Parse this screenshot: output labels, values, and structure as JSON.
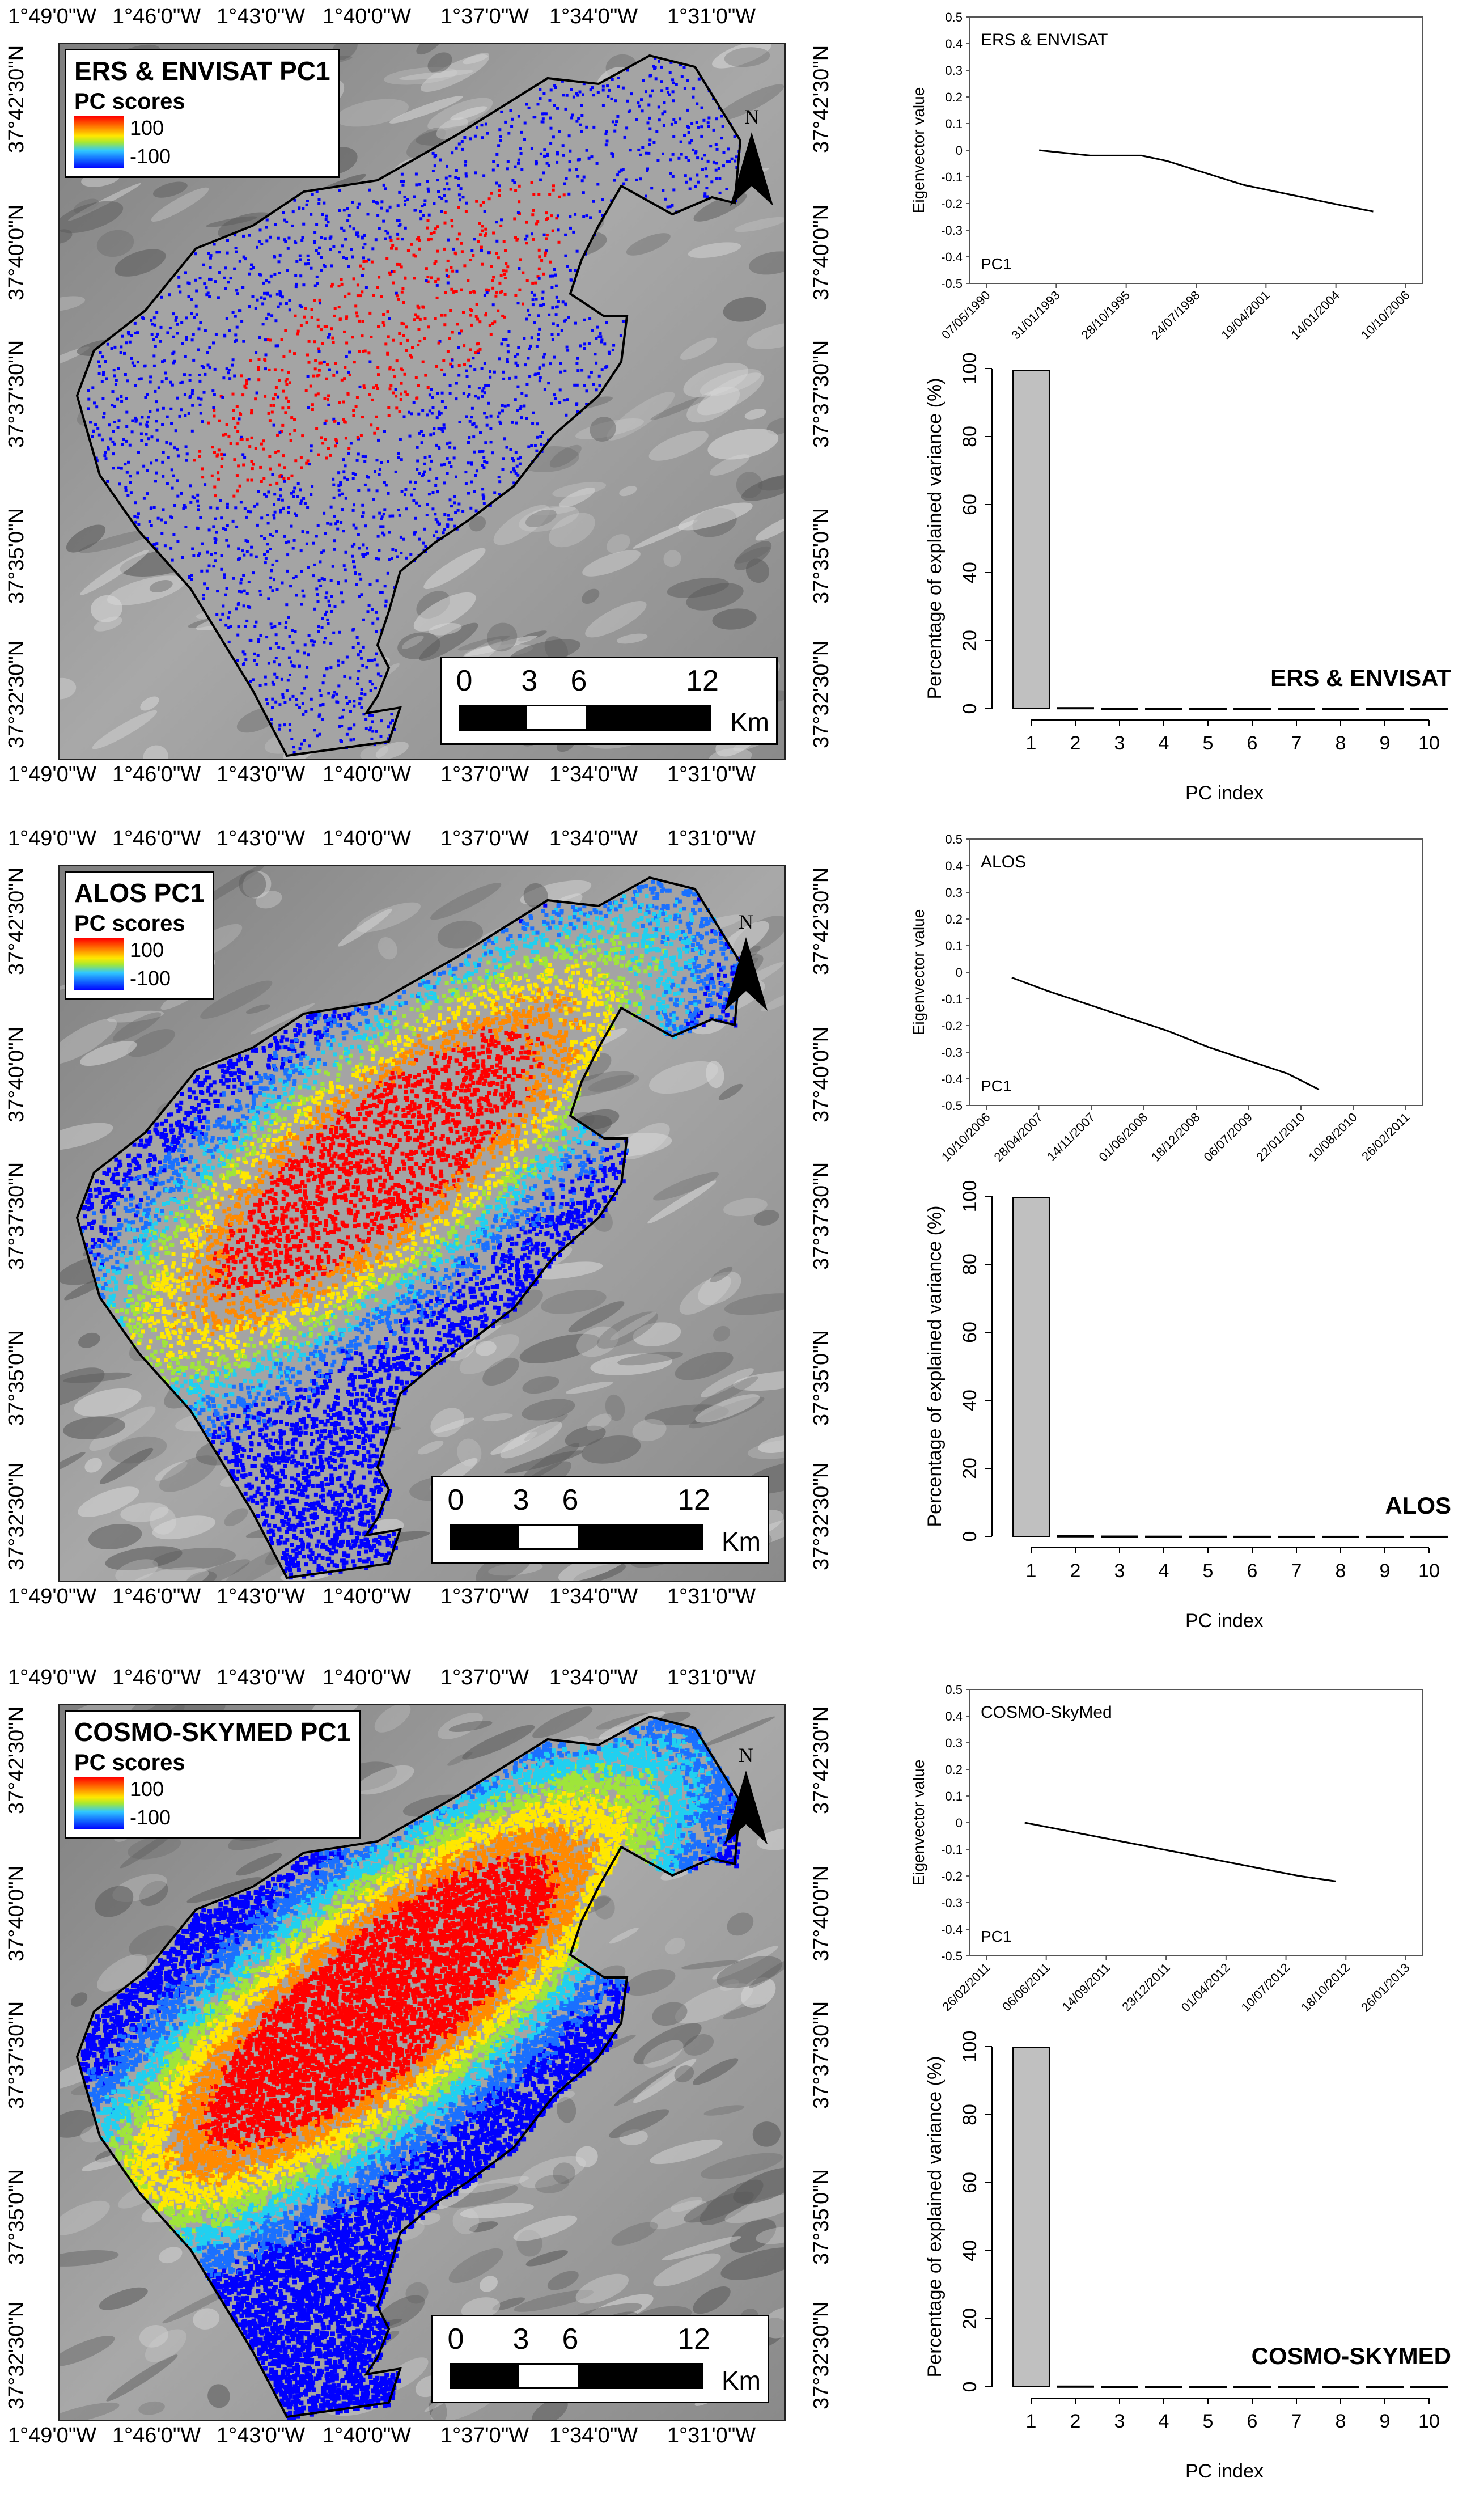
{
  "maps": [
    {
      "title": "ERS & ENVISAT PC1",
      "legend_label": "PC scores",
      "legend_max": "100",
      "legend_min": "-100",
      "intensity": "low",
      "scale_ticks": [
        "0",
        "3",
        "6",
        "12"
      ],
      "scale_unit": "Km",
      "north_label": "N"
    },
    {
      "title": "ALOS PC1",
      "legend_label": "PC scores",
      "legend_max": "100",
      "legend_min": "-100",
      "intensity": "medium",
      "scale_ticks": [
        "0",
        "3",
        "6",
        "12"
      ],
      "scale_unit": "Km",
      "north_label": "N"
    },
    {
      "title": "COSMO-SKYMED PC1",
      "legend_label": "PC scores",
      "legend_max": "100",
      "legend_min": "-100",
      "intensity": "high",
      "scale_ticks": [
        "0",
        "3",
        "6",
        "12"
      ],
      "scale_unit": "Km",
      "north_label": "N"
    }
  ],
  "lon_labels": [
    "1°49'0\"W",
    "1°46'0\"W",
    "1°43'0\"W",
    "1°40'0\"W",
    "1°37'0\"W",
    "1°34'0\"W",
    "1°31'0\"W"
  ],
  "lat_labels": [
    "37°42'30\"N",
    "37°40'0\"N",
    "37°37'30\"N",
    "37°35'0\"N",
    "37°32'30\"N"
  ],
  "colors": {
    "low": "#0000ff",
    "mid": "#ffe800",
    "high": "#ff0000",
    "bar_fill": "#c0c0c0",
    "line": "#000000"
  },
  "chart_data": [
    {
      "type": "line",
      "panel_label": "ERS & ENVISAT",
      "series_label": "PC1",
      "ylabel": "Eigenvector value",
      "ylim": [
        -0.5,
        0.5
      ],
      "y_ticks": [
        "0.5",
        "0.4",
        "0.3",
        "0.2",
        "0.1",
        "0",
        "-0.1",
        "-0.2",
        "-0.3",
        "-0.4",
        "-0.5"
      ],
      "x_ticks": [
        "07/05/1990",
        "31/01/1993",
        "28/10/1995",
        "24/07/1998",
        "19/04/2001",
        "14/01/2004",
        "10/10/2006"
      ],
      "x_range": [
        "1990-05-07",
        "2006-10-10"
      ],
      "x": [
        "1992-06-01",
        "1993-06-01",
        "1994-06-01",
        "1995-06-01",
        "1996-06-01",
        "1997-06-01",
        "1998-06-01",
        "1999-06-01",
        "2000-06-01",
        "2001-06-01",
        "2002-06-01",
        "2003-06-01",
        "2004-06-01",
        "2005-07-01"
      ],
      "y": [
        0.0,
        -0.01,
        -0.02,
        -0.02,
        -0.02,
        -0.04,
        -0.07,
        -0.1,
        -0.13,
        -0.15,
        -0.17,
        -0.19,
        -0.21,
        -0.23
      ]
    },
    {
      "type": "bar",
      "panel_label": "ERS & ENVISAT",
      "xlabel": "PC index",
      "ylabel": "Percentage of explained variance (%)",
      "ylim": [
        0,
        100
      ],
      "y_ticks": [
        "0",
        "20",
        "40",
        "60",
        "80",
        "100"
      ],
      "categories": [
        "1",
        "2",
        "3",
        "4",
        "5",
        "6",
        "7",
        "8",
        "9",
        "10"
      ],
      "values": [
        99.5,
        0.3,
        0.1,
        0.05,
        0.03,
        0.02,
        0.02,
        0.01,
        0.01,
        0.01
      ]
    },
    {
      "type": "line",
      "panel_label": "ALOS",
      "series_label": "PC1",
      "ylabel": "Eigenvector value",
      "ylim": [
        -0.5,
        0.5
      ],
      "y_ticks": [
        "0.5",
        "0.4",
        "0.3",
        "0.2",
        "0.1",
        "0",
        "-0.1",
        "-0.2",
        "-0.3",
        "-0.4",
        "-0.5"
      ],
      "x_ticks": [
        "10/10/2006",
        "28/04/2007",
        "14/11/2007",
        "01/06/2008",
        "18/12/2008",
        "06/07/2009",
        "22/01/2010",
        "10/08/2010",
        "26/02/2011"
      ],
      "x_range": [
        "2006-10-10",
        "2011-02-26"
      ],
      "x": [
        "2007-01-15",
        "2007-06-01",
        "2007-11-01",
        "2008-04-01",
        "2008-09-01",
        "2009-02-01",
        "2009-07-01",
        "2009-12-01",
        "2010-04-01"
      ],
      "y": [
        -0.02,
        -0.07,
        -0.12,
        -0.17,
        -0.22,
        -0.28,
        -0.33,
        -0.38,
        -0.44
      ]
    },
    {
      "type": "bar",
      "panel_label": "ALOS",
      "xlabel": "PC index",
      "ylabel": "Percentage of explained variance (%)",
      "ylim": [
        0,
        100
      ],
      "y_ticks": [
        "0",
        "20",
        "40",
        "60",
        "80",
        "100"
      ],
      "categories": [
        "1",
        "2",
        "3",
        "4",
        "5",
        "6",
        "7",
        "8",
        "9",
        "10"
      ],
      "values": [
        99.6,
        0.2,
        0.08,
        0.05,
        0.03,
        0.02,
        0.01,
        0.01,
        0.01,
        0.01
      ]
    },
    {
      "type": "line",
      "panel_label": "COSMO-SkyMed",
      "series_label": "PC1",
      "ylabel": "Eigenvector value",
      "ylim": [
        -0.5,
        0.5
      ],
      "y_ticks": [
        "0.5",
        "0.4",
        "0.3",
        "0.2",
        "0.1",
        "0",
        "-0.1",
        "-0.2",
        "-0.3",
        "-0.4",
        "-0.5"
      ],
      "x_ticks": [
        "26/02/2011",
        "06/06/2011",
        "14/09/2011",
        "23/12/2011",
        "01/04/2012",
        "10/07/2012",
        "18/10/2012",
        "26/01/2013"
      ],
      "x_range": [
        "2011-02-26",
        "2013-01-26"
      ],
      "x": [
        "2011-05-01",
        "2011-08-01",
        "2011-11-01",
        "2012-02-01",
        "2012-05-01",
        "2012-08-01",
        "2012-10-01"
      ],
      "y": [
        0.0,
        -0.04,
        -0.08,
        -0.12,
        -0.16,
        -0.2,
        -0.22
      ]
    },
    {
      "type": "bar",
      "panel_label": "COSMO-SKYMED",
      "xlabel": "PC index",
      "ylabel": "Percentage of explained variance (%)",
      "ylim": [
        0,
        100
      ],
      "y_ticks": [
        "0",
        "20",
        "40",
        "60",
        "80",
        "100"
      ],
      "categories": [
        "1",
        "2",
        "3",
        "4",
        "5",
        "6",
        "7",
        "8",
        "9",
        "10"
      ],
      "values": [
        99.7,
        0.2,
        0.05,
        0.03,
        0.02,
        0.01,
        0.01,
        0.01,
        0.01,
        0.01
      ]
    }
  ]
}
